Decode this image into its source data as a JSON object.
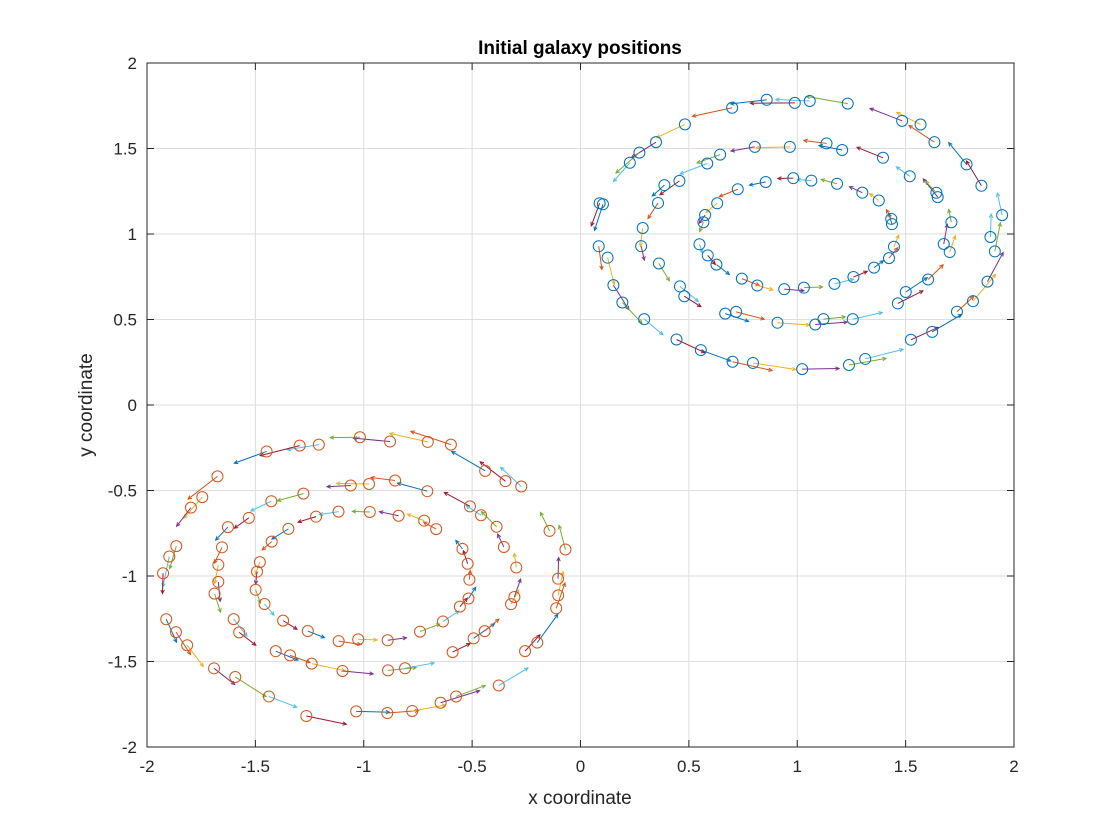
{
  "chart_data": {
    "type": "scatter",
    "title": "Initial galaxy positions",
    "xlabel": "x coordinate",
    "ylabel": "y coordinate",
    "xlim": [
      -2,
      2
    ],
    "ylim": [
      -2,
      2
    ],
    "xticks": [
      "-2",
      "-1.5",
      "-1",
      "-0.5",
      "0",
      "0.5",
      "1",
      "1.5",
      "2"
    ],
    "yticks": [
      "-2",
      "-1.5",
      "-1",
      "-0.5",
      "0",
      "0.5",
      "1",
      "1.5",
      "2"
    ],
    "grid": true,
    "marker": "circle",
    "velocity_colors": [
      "#0072BD",
      "#D95319",
      "#EDB120",
      "#7E2F8E",
      "#77AC30",
      "#4DBEEE",
      "#A2142F"
    ],
    "series": [
      {
        "color": "#0072BD",
        "center": [
          1,
          1
        ],
        "rings": [
          {
            "radius_x": 0.45,
            "radius_y": 0.32,
            "count": 24,
            "phase": 0.1
          },
          {
            "radius_x": 0.7,
            "radius_y": 0.52,
            "count": 30,
            "phase": 0.35
          },
          {
            "radius_x": 0.92,
            "radius_y": 0.78,
            "count": 36,
            "phase": 0.2
          }
        ],
        "velocity_direction": "counterclockwise",
        "velocity_scale": 0.14
      },
      {
        "color": "#D95319",
        "center": [
          -1,
          -1
        ],
        "rings": [
          {
            "radius_x": 0.5,
            "radius_y": 0.38,
            "count": 24,
            "phase": 0.25
          },
          {
            "radius_x": 0.7,
            "radius_y": 0.55,
            "count": 30,
            "phase": 0.05
          },
          {
            "radius_x": 0.92,
            "radius_y": 0.82,
            "count": 36,
            "phase": 0.4
          }
        ],
        "velocity_direction": "counterclockwise",
        "velocity_scale": 0.14
      }
    ]
  }
}
